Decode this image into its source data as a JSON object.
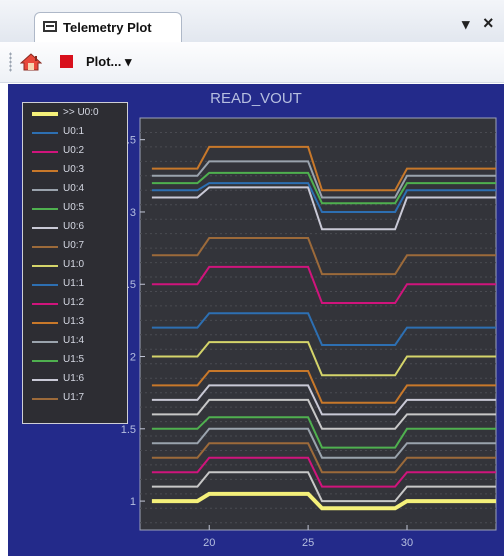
{
  "window": {
    "tab_title": "Telemetry Plot",
    "dropdown_glyph": "▾",
    "close_glyph": "×"
  },
  "toolbar": {
    "home_icon": "home-icon",
    "stop_icon": "stop-icon",
    "plot_label": "Plot... ▾"
  },
  "chart_data": {
    "type": "line",
    "title": "READ_VOUT",
    "xlabel": "",
    "ylabel": "",
    "xlim": [
      16.5,
      34.5
    ],
    "ylim": [
      0.8,
      3.65
    ],
    "xticks": [
      "20",
      "25",
      "30"
    ],
    "yticks": [
      "1",
      "1.5",
      "2",
      "2.5",
      "3",
      "3.5"
    ],
    "grid": true,
    "legend_position": "top-left",
    "transitions": [
      [
        19.4,
        20.0
      ],
      [
        25.0,
        25.7
      ],
      [
        29.4,
        30.0
      ]
    ],
    "series": [
      {
        "name": ">> U0:0",
        "color": "#f4f07a",
        "width": 4,
        "levels": [
          1.0,
          1.05,
          0.95,
          1.0
        ]
      },
      {
        "name": "U0:1",
        "color": "#2d6fb2",
        "width": 2,
        "levels": [
          3.15,
          3.2,
          3.0,
          3.15
        ]
      },
      {
        "name": "U0:2",
        "color": "#d0147c",
        "width": 2,
        "levels": [
          2.5,
          2.62,
          2.37,
          2.5
        ]
      },
      {
        "name": "U0:3",
        "color": "#c8782a",
        "width": 2,
        "levels": [
          3.3,
          3.45,
          3.15,
          3.3
        ]
      },
      {
        "name": "U0:4",
        "color": "#9aa3ad",
        "width": 2,
        "levels": [
          3.25,
          3.35,
          3.1,
          3.25
        ]
      },
      {
        "name": "U0:5",
        "color": "#4fb04f",
        "width": 2,
        "levels": [
          3.2,
          3.27,
          3.06,
          3.2
        ]
      },
      {
        "name": "U0:6",
        "color": "#c9c9d6",
        "width": 2,
        "levels": [
          3.1,
          3.17,
          2.88,
          3.1
        ]
      },
      {
        "name": "U0:7",
        "color": "#9c6a3a",
        "width": 2,
        "levels": [
          2.7,
          2.82,
          2.57,
          2.7
        ]
      },
      {
        "name": "U1:0",
        "color": "#d4d46a",
        "width": 2,
        "levels": [
          2.0,
          2.1,
          1.87,
          2.0
        ]
      },
      {
        "name": "U1:1",
        "color": "#2d6fb2",
        "width": 2,
        "levels": [
          2.2,
          2.3,
          2.08,
          2.2
        ]
      },
      {
        "name": "U1:2",
        "color": "#d0147c",
        "width": 2,
        "levels": [
          1.2,
          1.3,
          1.1,
          1.2
        ]
      },
      {
        "name": "U1:3",
        "color": "#c8782a",
        "width": 2,
        "levels": [
          1.8,
          1.9,
          1.68,
          1.8
        ]
      },
      {
        "name": "U1:4",
        "color": "#9aa3ad",
        "width": 2,
        "levels": [
          1.4,
          1.5,
          1.3,
          1.4
        ]
      },
      {
        "name": "U1:5",
        "color": "#4fb04f",
        "width": 2,
        "levels": [
          1.5,
          1.58,
          1.37,
          1.5
        ]
      },
      {
        "name": "U1:6",
        "color": "#c9c9d6",
        "width": 2,
        "levels": [
          1.7,
          1.8,
          1.6,
          1.7
        ]
      },
      {
        "name": "U1:7",
        "color": "#9c6a3a",
        "width": 2,
        "levels": [
          1.3,
          1.4,
          1.2,
          1.3
        ]
      },
      {
        "name": "",
        "color": "#c8c8c8",
        "width": 2,
        "levels": [
          1.6,
          1.7,
          1.5,
          1.6
        ]
      },
      {
        "name": "",
        "color": "#c8c8c8",
        "width": 2,
        "levels": [
          1.1,
          1.2,
          1.0,
          1.1
        ]
      }
    ]
  }
}
